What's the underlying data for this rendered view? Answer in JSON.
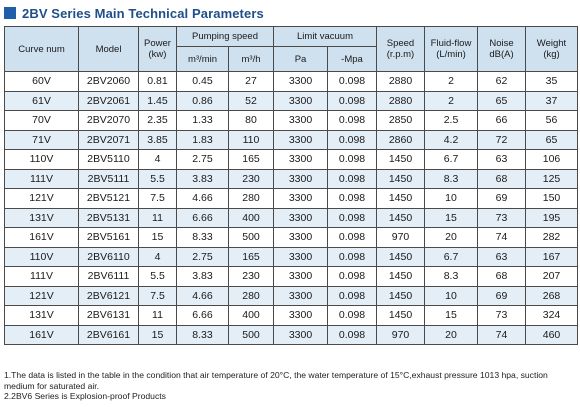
{
  "title": "2BV Series Main Technical Parameters",
  "accent_color": "#1f5fa8",
  "header": {
    "curve_num": "Curve num",
    "model": "Model",
    "power": "Power",
    "power_unit": "(kw)",
    "pumping_speed": "Pumping speed",
    "ps_unit_min": "m³/min",
    "ps_unit_h": "m³/h",
    "limit_vacuum": "Limit vacuum",
    "lv_unit_pa": "Pa",
    "lv_unit_mpa": "-Mpa",
    "speed": "Speed",
    "speed_unit": "(r.p.m)",
    "fluid_flow": "Fluid-flow",
    "fluid_flow_unit": "(L/min)",
    "noise": "Noise",
    "noise_unit": "dB(A)",
    "weight": "Weight",
    "weight_unit": "(kg)"
  },
  "rows": [
    [
      "60V",
      "2BV2060",
      "0.81",
      "0.45",
      "27",
      "3300",
      "0.098",
      "2880",
      "2",
      "62",
      "35"
    ],
    [
      "61V",
      "2BV2061",
      "1.45",
      "0.86",
      "52",
      "3300",
      "0.098",
      "2880",
      "2",
      "65",
      "37"
    ],
    [
      "70V",
      "2BV2070",
      "2.35",
      "1.33",
      "80",
      "3300",
      "0.098",
      "2850",
      "2.5",
      "66",
      "56"
    ],
    [
      "71V",
      "2BV2071",
      "3.85",
      "1.83",
      "110",
      "3300",
      "0.098",
      "2860",
      "4.2",
      "72",
      "65"
    ],
    [
      "110V",
      "2BV5110",
      "4",
      "2.75",
      "165",
      "3300",
      "0.098",
      "1450",
      "6.7",
      "63",
      "106"
    ],
    [
      "111V",
      "2BV5111",
      "5.5",
      "3.83",
      "230",
      "3300",
      "0.098",
      "1450",
      "8.3",
      "68",
      "125"
    ],
    [
      "121V",
      "2BV5121",
      "7.5",
      "4.66",
      "280",
      "3300",
      "0.098",
      "1450",
      "10",
      "69",
      "150"
    ],
    [
      "131V",
      "2BV5131",
      "11",
      "6.66",
      "400",
      "3300",
      "0.098",
      "1450",
      "15",
      "73",
      "195"
    ],
    [
      "161V",
      "2BV5161",
      "15",
      "8.33",
      "500",
      "3300",
      "0.098",
      "970",
      "20",
      "74",
      "282"
    ],
    [
      "110V",
      "2BV6110",
      "4",
      "2.75",
      "165",
      "3300",
      "0.098",
      "1450",
      "6.7",
      "63",
      "167"
    ],
    [
      "111V",
      "2BV6111",
      "5.5",
      "3.83",
      "230",
      "3300",
      "0.098",
      "1450",
      "8.3",
      "68",
      "207"
    ],
    [
      "121V",
      "2BV6121",
      "7.5",
      "4.66",
      "280",
      "3300",
      "0.098",
      "1450",
      "10",
      "69",
      "268"
    ],
    [
      "131V",
      "2BV6131",
      "11",
      "6.66",
      "400",
      "3300",
      "0.098",
      "1450",
      "15",
      "73",
      "324"
    ],
    [
      "161V",
      "2BV6161",
      "15",
      "8.33",
      "500",
      "3300",
      "0.098",
      "970",
      "20",
      "74",
      "460"
    ]
  ],
  "notes": [
    "1.The data is listed in the table in the condition that air temperature of 20°C, the water temperature of 15°C,exhaust pressure 1013 hpa, suction medium for saturated air.",
    "2.2BV6 Series is Explosion-proof Products"
  ]
}
